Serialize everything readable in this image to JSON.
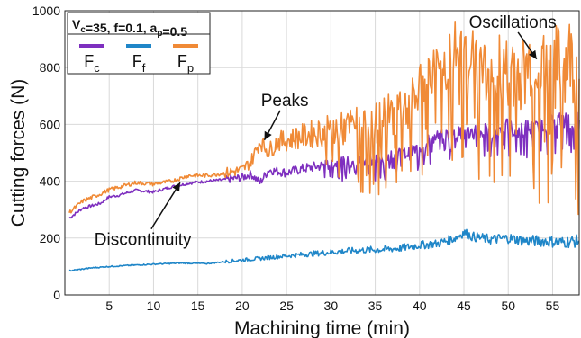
{
  "chart_data": {
    "type": "line",
    "title": "",
    "xlabel": "Machining time (min)",
    "ylabel": "Cutting forces (N)",
    "xlim": [
      0,
      58
    ],
    "ylim": [
      0,
      1000
    ],
    "xticks": [
      5,
      10,
      15,
      20,
      25,
      30,
      35,
      40,
      45,
      50,
      55
    ],
    "yticks": [
      0,
      200,
      400,
      600,
      800,
      1000
    ],
    "grid": true,
    "legend": {
      "placement": "top-left",
      "header": {
        "parts": [
          [
            "V",
            "c"
          ],
          [
            "=35, f=0.1, a",
            "p"
          ],
          [
            "=0.5",
            ""
          ]
        ]
      },
      "entries": [
        {
          "base": "F",
          "sub": "c",
          "series": 0
        },
        {
          "base": "F",
          "sub": "f",
          "series": 1
        },
        {
          "base": "F",
          "sub": "p",
          "series": 2
        }
      ]
    },
    "series": [
      {
        "key": "Fc",
        "color": "#7e2fbf",
        "x": [
          0.5,
          2,
          4,
          5,
          6,
          8,
          10,
          12,
          14,
          16,
          18,
          20,
          21,
          22,
          23,
          25,
          27,
          29,
          31,
          33,
          35,
          37,
          39,
          40,
          41,
          42,
          43,
          44,
          45,
          46,
          47,
          48,
          49,
          50,
          51,
          52,
          53,
          54,
          55,
          56,
          57,
          58
        ],
        "y": [
          270,
          305,
          322,
          345,
          350,
          368,
          362,
          380,
          393,
          400,
          405,
          413,
          425,
          395,
          440,
          430,
          445,
          455,
          465,
          470,
          478,
          490,
          500,
          520,
          545,
          555,
          560,
          565,
          570,
          575,
          575,
          580,
          585,
          590,
          575,
          590,
          580,
          600,
          610,
          615,
          610,
          615
        ]
      },
      {
        "key": "Ff",
        "color": "#1f86c8",
        "x": [
          0.5,
          3,
          5,
          8,
          10,
          13,
          16,
          19,
          22,
          24,
          26,
          28,
          30,
          32,
          34,
          36,
          38,
          40,
          42,
          44,
          45,
          46,
          48,
          50,
          52,
          54,
          56,
          58
        ],
        "y": [
          85,
          95,
          100,
          105,
          108,
          112,
          110,
          120,
          128,
          135,
          140,
          145,
          150,
          155,
          158,
          160,
          165,
          175,
          180,
          200,
          220,
          205,
          195,
          200,
          190,
          190,
          185,
          190
        ]
      },
      {
        "key": "Fp",
        "color": "#f08a36",
        "x": [
          0.5,
          2,
          4,
          5,
          6,
          8,
          10,
          12,
          14,
          16,
          18,
          20,
          21,
          22,
          23,
          24,
          25,
          27,
          29,
          31,
          33,
          35,
          37,
          39,
          40,
          41,
          42,
          43,
          44,
          45,
          46,
          47,
          48,
          49,
          50,
          51,
          52,
          53,
          54,
          55,
          56,
          57,
          58
        ],
        "y": [
          290,
          330,
          355,
          370,
          378,
          395,
          390,
          400,
          420,
          420,
          428,
          440,
          470,
          540,
          505,
          540,
          545,
          560,
          575,
          580,
          600,
          600,
          640,
          660,
          720,
          780,
          780,
          800,
          860,
          860,
          840,
          800,
          790,
          800,
          770,
          780,
          790,
          850,
          770,
          800,
          800,
          830,
          760
        ]
      }
    ],
    "annotations": [
      {
        "text": "Oscillations",
        "x": 50.5,
        "y": 940,
        "arrow_to": [
          53.2,
          830
        ]
      },
      {
        "text": "Peaks",
        "x": 24.8,
        "y": 665,
        "arrow_to": [
          22.5,
          545
        ]
      },
      {
        "text": "Discontinuity",
        "x": 8.8,
        "y": 175,
        "arrow_to": [
          13.0,
          395
        ]
      }
    ]
  }
}
